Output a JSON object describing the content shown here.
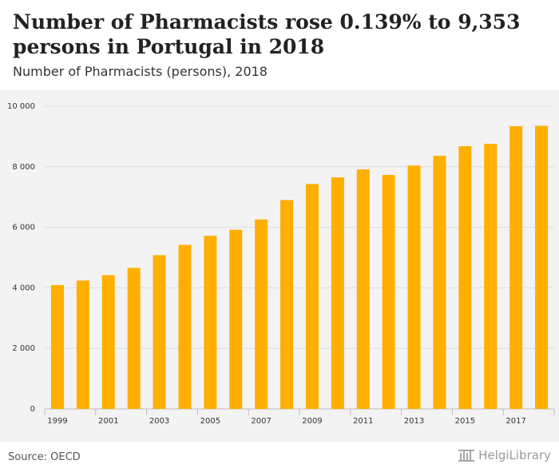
{
  "header": {
    "title": "Number of Pharmacists rose 0.139% to 9,353 persons in Portugal in 2018",
    "subtitle": "Number of Pharmacists (persons), 2018"
  },
  "footer": {
    "source": "Source: OECD",
    "brand_name": "HelgiLibrary",
    "brand_icon": "library-columns-icon"
  },
  "colors": {
    "bar": "#FFAF00",
    "chart_background": "#f3f3f3",
    "grid": "#dcdcdc",
    "text": "#333333"
  },
  "chart_data": {
    "type": "bar",
    "x": [
      1999,
      2000,
      2001,
      2002,
      2003,
      2004,
      2005,
      2006,
      2007,
      2008,
      2009,
      2010,
      2011,
      2012,
      2013,
      2014,
      2015,
      2016,
      2017,
      2018
    ],
    "values": [
      4090,
      4240,
      4420,
      4660,
      5080,
      5420,
      5720,
      5920,
      6260,
      6900,
      7430,
      7650,
      7910,
      7730,
      8040,
      8360,
      8680,
      8760,
      9340,
      9353
    ],
    "x_tick_labels": [
      "1999",
      "2001",
      "2003",
      "2005",
      "2007",
      "2009",
      "2011",
      "2013",
      "2015",
      "2017"
    ],
    "y_ticks": [
      0,
      2000,
      4000,
      6000,
      8000,
      10000
    ],
    "y_tick_labels": [
      "0",
      "2 000",
      "4 000",
      "6 000",
      "8 000",
      "10 000"
    ],
    "ylim": [
      0,
      10000
    ],
    "grid": true,
    "legend": "none",
    "xlabel": "",
    "ylabel": ""
  }
}
